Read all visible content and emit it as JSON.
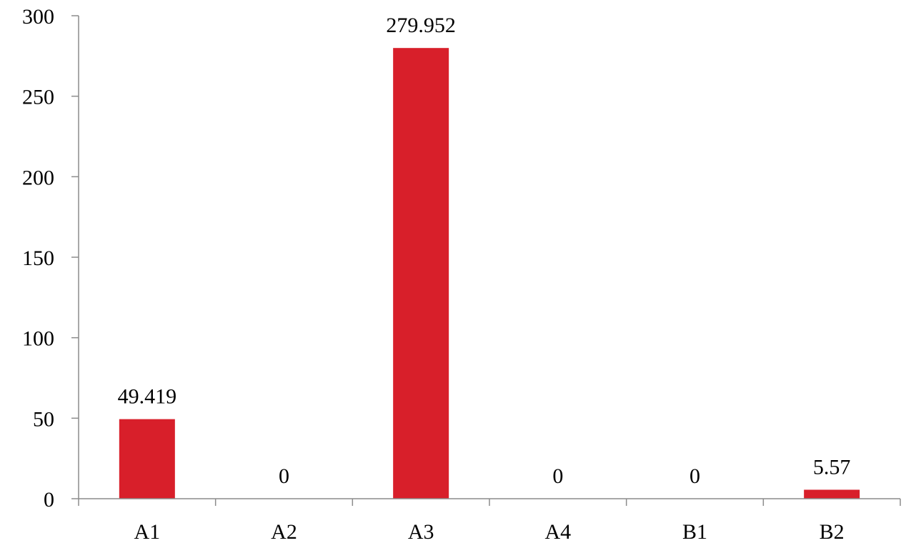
{
  "chart_data": {
    "type": "bar",
    "categories": [
      "A1",
      "A2",
      "A3",
      "A4",
      "B1",
      "B2"
    ],
    "values": [
      49.419,
      0,
      279.952,
      0,
      0,
      5.57
    ],
    "data_labels": [
      "49.419",
      "0",
      "279.952",
      "0",
      "0",
      "5.57"
    ],
    "ylim": [
      0,
      300
    ],
    "yticks": [
      0,
      50,
      100,
      150,
      200,
      250,
      300
    ],
    "ytick_labels": [
      "0",
      "50",
      "100",
      "150",
      "200",
      "250",
      "300"
    ],
    "grid": false,
    "legend": "none",
    "bar_color": "#d81f2a"
  }
}
